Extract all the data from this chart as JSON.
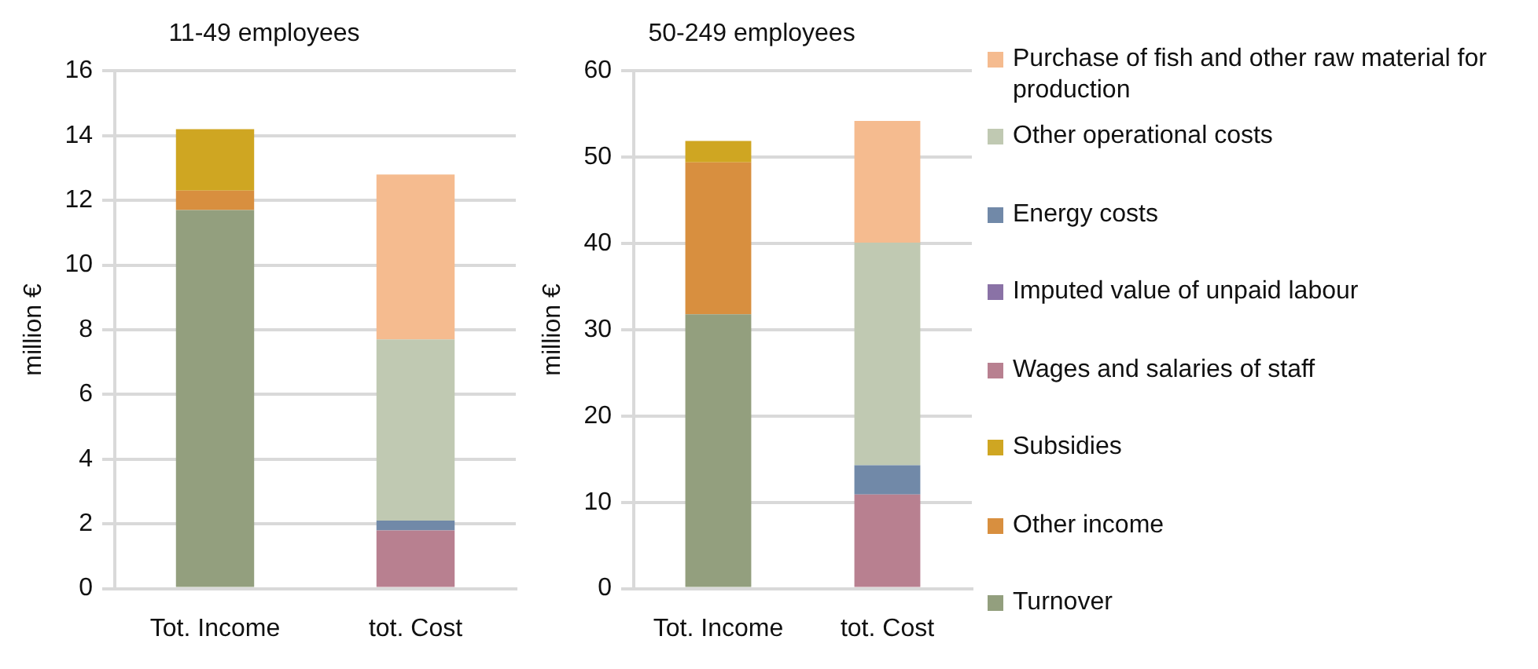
{
  "chart_data": [
    {
      "type": "bar",
      "title": "11-49 employees",
      "ylabel": "million €",
      "categories": [
        "Tot. Income",
        "tot. Cost"
      ],
      "stacked": true,
      "ylim": [
        0,
        16
      ],
      "yticks": [
        0,
        2,
        4,
        6,
        8,
        10,
        12,
        14,
        16
      ],
      "grid": "y",
      "legend": false,
      "series": [
        {
          "color": "#939f7e",
          "values": [
            11.7,
            null
          ]
        },
        {
          "color": "#d88f3f",
          "values": [
            0.6,
            null
          ]
        },
        {
          "color": "#cfa622",
          "values": [
            1.9,
            null
          ]
        },
        {
          "color": "#b88090",
          "values": [
            null,
            1.8
          ]
        },
        {
          "color": "#8a72a6",
          "values": [
            null,
            0
          ]
        },
        {
          "color": "#7189a8",
          "values": [
            null,
            0.3
          ]
        },
        {
          "color": "#c0c9b2",
          "values": [
            null,
            5.6
          ]
        },
        {
          "color": "#f5bb8f",
          "values": [
            null,
            5.1
          ]
        }
      ]
    },
    {
      "type": "bar",
      "title": "50-249 employees",
      "ylabel": "million €",
      "categories": [
        "Tot. Income",
        "tot. Cost"
      ],
      "stacked": true,
      "ylim": [
        0,
        60
      ],
      "yticks": [
        0,
        10,
        20,
        30,
        40,
        50,
        60
      ],
      "grid": "y",
      "legend": "right",
      "series": [
        {
          "name": "Turnover",
          "color": "#939f7e",
          "values": [
            31.8,
            null
          ]
        },
        {
          "name": "Other income",
          "color": "#d88f3f",
          "values": [
            17.6,
            null
          ]
        },
        {
          "name": "Subsidies",
          "color": "#cfa622",
          "values": [
            2.5,
            null
          ]
        },
        {
          "name": "Wages and salaries of staff",
          "color": "#b88090",
          "values": [
            null,
            10.9
          ]
        },
        {
          "name": "Imputed value of unpaid labour",
          "color": "#8a72a6",
          "values": [
            null,
            0
          ]
        },
        {
          "name": "Energy costs",
          "color": "#7189a8",
          "values": [
            null,
            3.4
          ]
        },
        {
          "name": "Other operational costs",
          "color": "#c0c9b2",
          "values": [
            null,
            25.8
          ]
        },
        {
          "name": "Purchase of fish and other raw material for production",
          "color": "#f5bb8f",
          "values": [
            null,
            14.1
          ]
        }
      ]
    }
  ]
}
